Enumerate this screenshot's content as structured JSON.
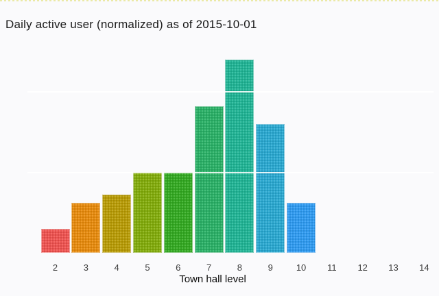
{
  "decor": {
    "top_dotted_line_color": "#e9e79b"
  },
  "chart_data": {
    "type": "bar",
    "title": "Daily active user (normalized) as of 2015-10-01",
    "xlabel": "Town hall level",
    "ylabel": "",
    "x_ticks": [
      "2",
      "3",
      "4",
      "5",
      "6",
      "7",
      "8",
      "9",
      "10",
      "11",
      "12",
      "13",
      "14"
    ],
    "bars": [
      {
        "level": 2,
        "value": 0.15,
        "color": "#ee5350"
      },
      {
        "level": 3,
        "value": 0.31,
        "color": "#e68a0d"
      },
      {
        "level": 4,
        "value": 0.36,
        "color": "#b89b06"
      },
      {
        "level": 5,
        "value": 0.5,
        "color": "#82ab0b"
      },
      {
        "level": 6,
        "value": 0.5,
        "color": "#33a922"
      },
      {
        "level": 7,
        "value": 0.91,
        "color": "#2ab066"
      },
      {
        "level": 8,
        "value": 1.2,
        "color": "#21b495"
      },
      {
        "level": 9,
        "value": 0.8,
        "color": "#2aa8d0"
      },
      {
        "level": 10,
        "value": 0.31,
        "color": "#2f9af0"
      }
    ],
    "ylim": [
      0,
      1.25
    ],
    "gridlines_y": [
      0.5,
      1.0
    ],
    "grid_color": "#ffffff",
    "grid_visible_only_over_bars": true,
    "legend": "none",
    "y_axis_labels": "none",
    "axis_text_color": "#3d3d3d"
  }
}
